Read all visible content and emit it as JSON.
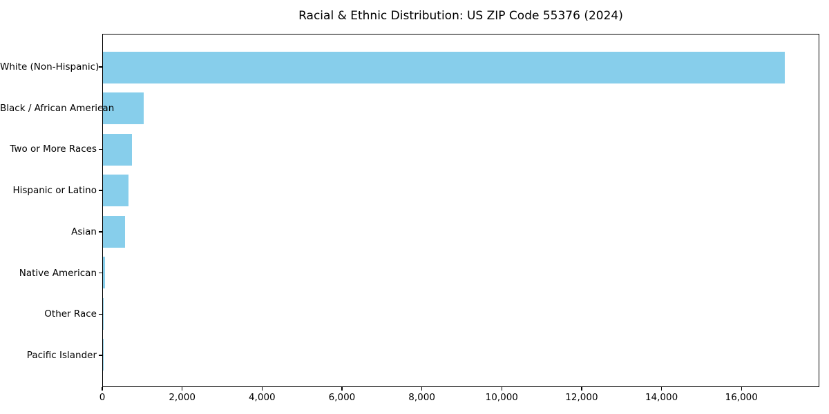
{
  "figure": {
    "title": "Racial & Ethnic Distribution: US ZIP Code 55376 (2024)"
  },
  "chart_data": {
    "type": "bar",
    "orientation": "horizontal",
    "title": "Racial & Ethnic Distribution: US ZIP Code 55376 (2024)",
    "categories": [
      "White (Non-Hispanic)",
      "Black / African American",
      "Two or More Races",
      "Hispanic or Latino",
      "Asian",
      "Native American",
      "Other Race",
      "Pacific Islander"
    ],
    "values": [
      17100,
      1025,
      730,
      640,
      555,
      50,
      12,
      3
    ],
    "xlabel": "",
    "ylabel": "",
    "xlim": [
      0,
      17950
    ],
    "x_ticks": [
      0,
      2000,
      4000,
      6000,
      8000,
      10000,
      12000,
      14000,
      16000
    ],
    "x_tick_labels": [
      "0",
      "2,000",
      "4,000",
      "6,000",
      "8,000",
      "10,000",
      "12,000",
      "14,000",
      "16,000"
    ],
    "bar_color": "#87CEEB",
    "axis_color": "#000000",
    "background_color": "#FFFFFF",
    "grid": false,
    "legend": null
  }
}
